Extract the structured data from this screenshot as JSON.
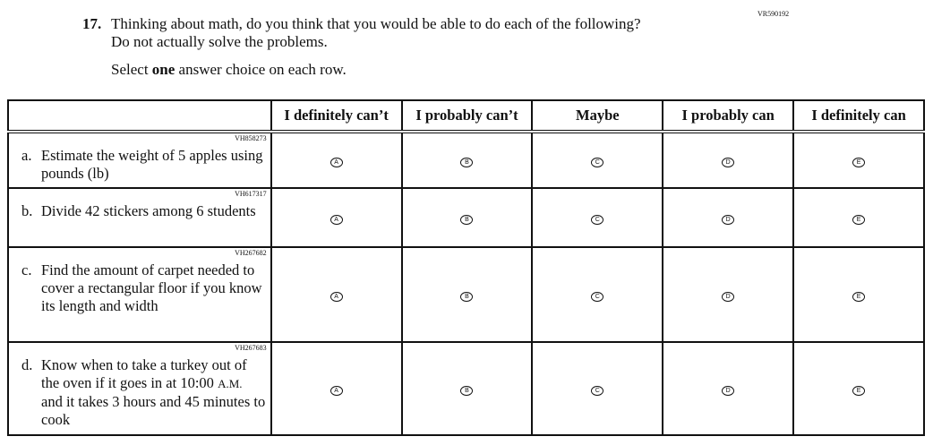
{
  "question": {
    "code": "VR590192",
    "number": "17.",
    "text_line1": "Thinking about math, do you think that you would be able to do each of the following?",
    "text_line2": "Do not actually solve the problems.",
    "instruction_pre": "Select ",
    "instruction_bold": "one",
    "instruction_post": " answer choice on each row."
  },
  "columns": [
    "I definitely can’t",
    "I probably can’t",
    "Maybe",
    "I probably can",
    "I definitely can"
  ],
  "bubbles": [
    "A",
    "B",
    "C",
    "D",
    "E"
  ],
  "rows": [
    {
      "code": "VH858273",
      "letter": "a.",
      "text": "Estimate the weight of 5 apples using pounds (lb)"
    },
    {
      "code": "VH617317",
      "letter": "b.",
      "text": "Divide 42 stickers among 6 students"
    },
    {
      "code": "VH267682",
      "letter": "c.",
      "text": "Find the amount of carpet needed to cover a rectangular floor if you know its length and width"
    },
    {
      "code": "VH267683",
      "letter": "d.",
      "text_pre": "Know when to take a turkey out of the oven if it goes in at 10:00 ",
      "text_sc": "A.M.",
      "text_post": " and it takes 3 hours and 45 minutes to cook"
    }
  ]
}
